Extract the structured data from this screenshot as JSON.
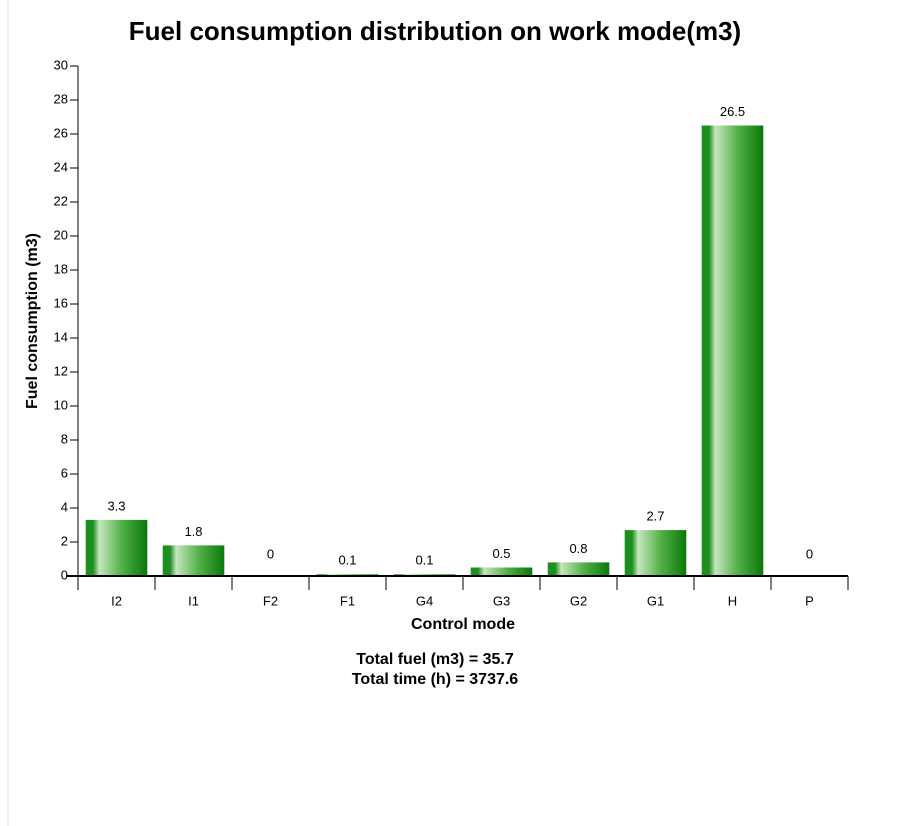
{
  "chart_data": {
    "type": "bar",
    "title": "Fuel consumption distribution on work mode(m3)",
    "x_label": "Control mode",
    "y_label": "Fuel consumption (m3)",
    "annotations": [
      "Total fuel (m3) = 35.7",
      "Total time (h) = 3737.6"
    ],
    "categories": [
      "I2",
      "I1",
      "F2",
      "F1",
      "G4",
      "G3",
      "G2",
      "G1",
      "H",
      "P"
    ],
    "values": [
      3.3,
      1.8,
      0,
      0.1,
      0.1,
      0.5,
      0.8,
      2.7,
      26.5,
      0
    ],
    "color": "#0b7a0b",
    "ylim": [
      0,
      30
    ],
    "yticks": [
      0,
      2,
      4,
      6,
      8,
      10,
      12,
      14,
      16,
      18,
      20,
      22,
      24,
      26,
      28,
      30
    ]
  }
}
